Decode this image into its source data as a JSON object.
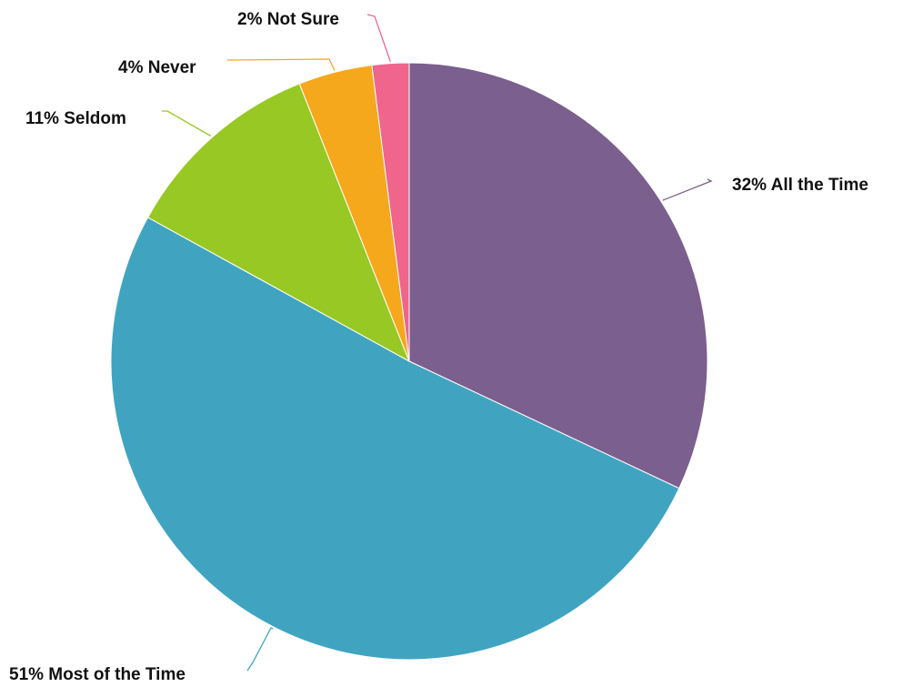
{
  "chart_data": {
    "type": "pie",
    "start": "12 o'clock",
    "direction": "clockwise",
    "legend": "none",
    "slices": [
      {
        "label": "All the Time",
        "value": 32,
        "text": "32% All the Time",
        "color": "#7b5f8f"
      },
      {
        "label": "Most of the Time",
        "value": 51,
        "text": "51% Most of the Time",
        "color": "#40a4c1"
      },
      {
        "label": "Seldom",
        "value": 11,
        "text": "11% Seldom",
        "color": "#97c824"
      },
      {
        "label": "Never",
        "value": 4,
        "text": "4% Never",
        "color": "#f5a81c"
      },
      {
        "label": "Not Sure",
        "value": 2,
        "text": "2% Not Sure",
        "color": "#ef658c"
      }
    ]
  }
}
